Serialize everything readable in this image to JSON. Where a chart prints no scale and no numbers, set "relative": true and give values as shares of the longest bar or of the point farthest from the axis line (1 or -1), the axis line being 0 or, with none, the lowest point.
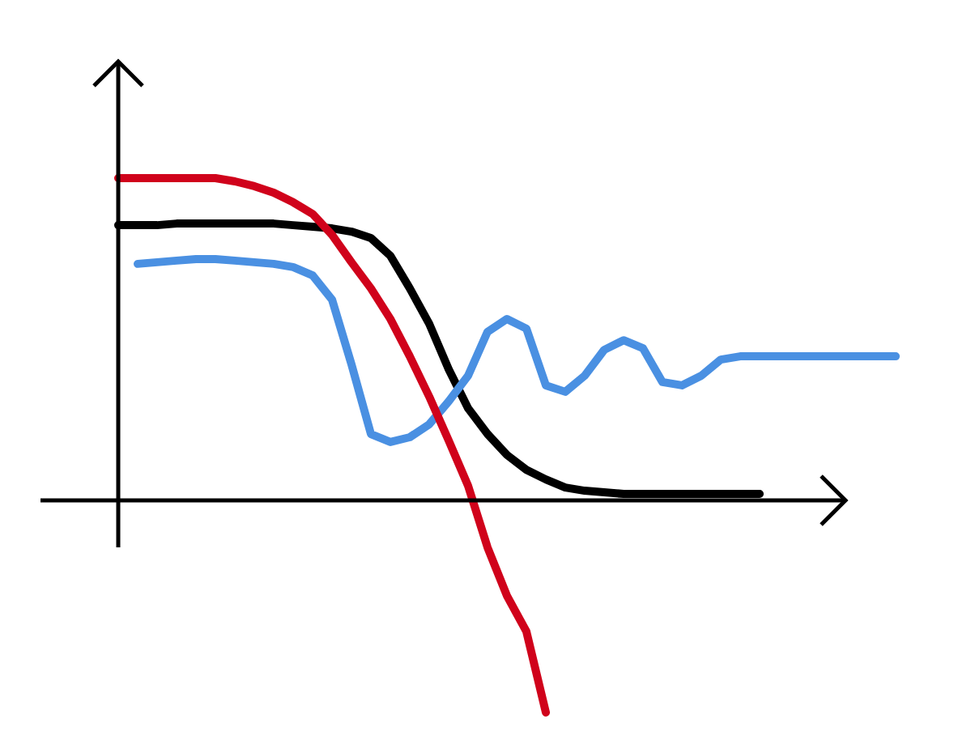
{
  "chart_data": {
    "type": "line",
    "relative": true,
    "categories": [
      null,
      null,
      null,
      null,
      null,
      null,
      null,
      null,
      null,
      null,
      null,
      null,
      null,
      null,
      null,
      null,
      null,
      null,
      null,
      null,
      null,
      null,
      null,
      null,
      null,
      null,
      null,
      null,
      null,
      null,
      null,
      null,
      null,
      null,
      null,
      null,
      null,
      null,
      null,
      null,
      null
    ],
    "series": [
      {
        "color": "#000000",
        "values": [
          0.854,
          0.854,
          0.854,
          0.859,
          0.859,
          0.859,
          0.859,
          0.859,
          0.859,
          0.854,
          0.849,
          0.844,
          0.834,
          0.814,
          0.759,
          0.658,
          0.548,
          0.407,
          0.286,
          0.206,
          0.141,
          0.095,
          0.065,
          0.04,
          0.03,
          0.025,
          0.02,
          0.02,
          0.02,
          0.02,
          0.02,
          0.02,
          0.02,
          0.02,
          null,
          null,
          null,
          null,
          null,
          null,
          null
        ]
      },
      {
        "color": "#4a90e2",
        "values": [
          null,
          0.734,
          0.739,
          0.744,
          0.749,
          0.749,
          0.744,
          0.739,
          0.734,
          0.724,
          0.698,
          0.623,
          0.422,
          0.206,
          0.181,
          0.196,
          0.236,
          0.307,
          0.387,
          0.523,
          0.563,
          0.533,
          0.357,
          0.337,
          0.387,
          0.467,
          0.497,
          0.472,
          0.367,
          0.357,
          0.387,
          0.437,
          0.447,
          0.447,
          0.447,
          0.447,
          0.447,
          0.447,
          0.447,
          0.447,
          0.447
        ]
      },
      {
        "color": "#d0021b",
        "values": [
          1.0,
          1.0,
          1.0,
          1.0,
          1.0,
          1.0,
          0.99,
          0.975,
          0.955,
          0.925,
          0.889,
          0.824,
          0.739,
          0.658,
          0.563,
          0.447,
          0.322,
          0.186,
          0.045,
          -0.146,
          -0.296,
          -0.407,
          -0.658,
          null,
          null,
          null,
          null,
          null,
          null,
          null,
          null,
          null,
          null,
          null,
          null,
          null,
          null,
          null,
          null,
          null,
          null
        ]
      }
    ]
  }
}
